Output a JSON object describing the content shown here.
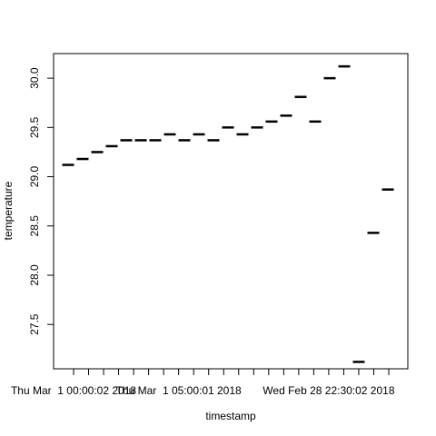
{
  "chart_data": {
    "type": "scatter",
    "marker": "horizontal-dash",
    "xlabel": "timestamp",
    "ylabel": "temperature",
    "grid": false,
    "x_categories_count": 22,
    "ylim": [
      27.05,
      30.25
    ],
    "y_ticks": [
      27.5,
      28.0,
      28.5,
      29.0,
      29.5,
      30.0
    ],
    "y_tick_labels": [
      "27.5",
      "28.0",
      "28.5",
      "29.0",
      "29.5",
      "30.0"
    ],
    "x_tick_labels": [
      {
        "index": 1,
        "label": "Thu Mar  1 00:00:02 2018"
      },
      {
        "index": 8,
        "label": "Thu Mar  1 05:00:01 2018"
      },
      {
        "index": 18,
        "label": "Wed Feb 28 22:30:02 2018"
      }
    ],
    "values": [
      29.12,
      29.18,
      29.25,
      29.31,
      29.37,
      29.37,
      29.37,
      29.43,
      29.37,
      29.43,
      29.37,
      29.5,
      29.43,
      29.5,
      29.56,
      29.62,
      29.81,
      29.56,
      30.0,
      30.12,
      27.12,
      28.43,
      28.87
    ]
  }
}
